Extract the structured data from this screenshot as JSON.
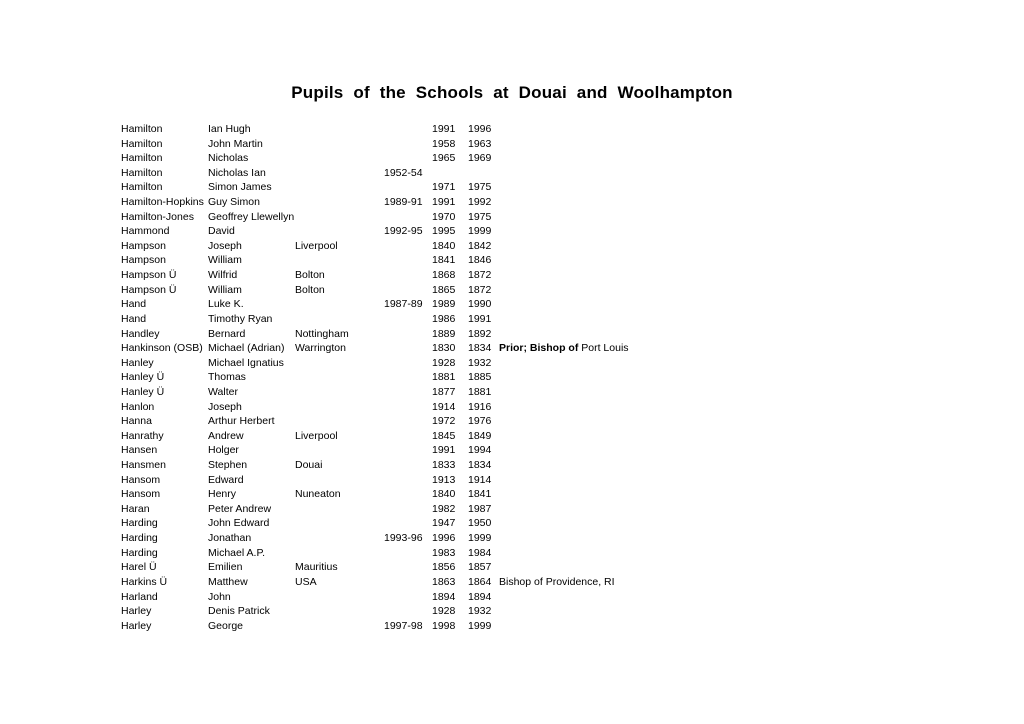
{
  "page": {
    "title": "Pupils of the Schools at Douai and Woolhampton",
    "background_color": "#ffffff",
    "text_color": "#000000"
  },
  "table": {
    "columns": [
      "surname",
      "forename",
      "place",
      "prep_years",
      "year_start",
      "year_end",
      "note"
    ],
    "rows": [
      {
        "surname": "Hamilton",
        "forename": "Ian Hugh",
        "place": "",
        "range": "",
        "y1": "1991",
        "y2": "1996",
        "note_bold": "",
        "note": ""
      },
      {
        "surname": "Hamilton",
        "forename": "John Martin",
        "place": "",
        "range": "",
        "y1": "1958",
        "y2": "1963",
        "note_bold": "",
        "note": ""
      },
      {
        "surname": "Hamilton",
        "forename": "Nicholas",
        "place": "",
        "range": "",
        "y1": "1965",
        "y2": "1969",
        "note_bold": "",
        "note": ""
      },
      {
        "surname": "Hamilton",
        "forename": "Nicholas Ian",
        "place": "",
        "range": "1952-54",
        "y1": "",
        "y2": "",
        "note_bold": "",
        "note": ""
      },
      {
        "surname": "Hamilton",
        "forename": "Simon James",
        "place": "",
        "range": "",
        "y1": "1971",
        "y2": "1975",
        "note_bold": "",
        "note": ""
      },
      {
        "surname": "Hamilton-Hopkins",
        "forename": "Guy Simon",
        "place": "",
        "range": "1989-91",
        "y1": "1991",
        "y2": "1992",
        "note_bold": "",
        "note": ""
      },
      {
        "surname": "Hamilton-Jones",
        "forename": "Geoffrey Llewellyn",
        "place": "",
        "range": "",
        "y1": "1970",
        "y2": "1975",
        "note_bold": "",
        "note": ""
      },
      {
        "surname": "Hammond",
        "forename": "David",
        "place": "",
        "range": "1992-95",
        "y1": "1995",
        "y2": "1999",
        "note_bold": "",
        "note": ""
      },
      {
        "surname": "Hampson",
        "forename": "Joseph",
        "place": "Liverpool",
        "range": "",
        "y1": "1840",
        "y2": "1842",
        "note_bold": "",
        "note": ""
      },
      {
        "surname": "Hampson",
        "forename": "William",
        "place": "",
        "range": "",
        "y1": "1841",
        "y2": "1846",
        "note_bold": "",
        "note": ""
      },
      {
        "surname": "Hampson Ü",
        "forename": "Wilfrid",
        "place": "Bolton",
        "range": "",
        "y1": "1868",
        "y2": "1872",
        "note_bold": "",
        "note": ""
      },
      {
        "surname": "Hampson Ü",
        "forename": "William",
        "place": "Bolton",
        "range": "",
        "y1": "1865",
        "y2": "1872",
        "note_bold": "",
        "note": ""
      },
      {
        "surname": "Hand",
        "forename": "Luke K.",
        "place": "",
        "range": "1987-89",
        "y1": "1989",
        "y2": "1990",
        "note_bold": "",
        "note": ""
      },
      {
        "surname": "Hand",
        "forename": "Timothy Ryan",
        "place": "",
        "range": "",
        "y1": "1986",
        "y2": "1991",
        "note_bold": "",
        "note": ""
      },
      {
        "surname": "Handley",
        "forename": "Bernard",
        "place": "Nottingham",
        "range": "",
        "y1": "1889",
        "y2": "1892",
        "note_bold": "",
        "note": ""
      },
      {
        "surname": "Hankinson (OSB)",
        "forename": "Michael (Adrian)",
        "place": "Warrington",
        "range": "",
        "y1": "1830",
        "y2": "1834",
        "note_bold": "Prior; Bishop of",
        "note": " Port Louis"
      },
      {
        "surname": "Hanley",
        "forename": "Michael Ignatius",
        "place": "",
        "range": "",
        "y1": "1928",
        "y2": "1932",
        "note_bold": "",
        "note": ""
      },
      {
        "surname": "Hanley Ü",
        "forename": "Thomas",
        "place": "",
        "range": "",
        "y1": "1881",
        "y2": "1885",
        "note_bold": "",
        "note": ""
      },
      {
        "surname": "Hanley Ü",
        "forename": "Walter",
        "place": "",
        "range": "",
        "y1": "1877",
        "y2": "1881",
        "note_bold": "",
        "note": ""
      },
      {
        "surname": "Hanlon",
        "forename": "Joseph",
        "place": "",
        "range": "",
        "y1": "1914",
        "y2": "1916",
        "note_bold": "",
        "note": ""
      },
      {
        "surname": "Hanna",
        "forename": "Arthur Herbert",
        "place": "",
        "range": "",
        "y1": "1972",
        "y2": "1976",
        "note_bold": "",
        "note": ""
      },
      {
        "surname": "Hanrathy",
        "forename": "Andrew",
        "place": "Liverpool",
        "range": "",
        "y1": "1845",
        "y2": "1849",
        "note_bold": "",
        "note": ""
      },
      {
        "surname": "Hansen",
        "forename": "Holger",
        "place": "",
        "range": "",
        "y1": "1991",
        "y2": "1994",
        "note_bold": "",
        "note": ""
      },
      {
        "surname": "Hansmen",
        "forename": "Stephen",
        "place": "Douai",
        "range": "",
        "y1": "1833",
        "y2": "1834",
        "note_bold": "",
        "note": ""
      },
      {
        "surname": "Hansom",
        "forename": "Edward",
        "place": "",
        "range": "",
        "y1": "1913",
        "y2": "1914",
        "note_bold": "",
        "note": ""
      },
      {
        "surname": "Hansom",
        "forename": "Henry",
        "place": "Nuneaton",
        "range": "",
        "y1": "1840",
        "y2": "1841",
        "note_bold": "",
        "note": ""
      },
      {
        "surname": "Haran",
        "forename": "Peter Andrew",
        "place": "",
        "range": "",
        "y1": "1982",
        "y2": "1987",
        "note_bold": "",
        "note": ""
      },
      {
        "surname": "Harding",
        "forename": "John Edward",
        "place": "",
        "range": "",
        "y1": "1947",
        "y2": "1950",
        "note_bold": "",
        "note": ""
      },
      {
        "surname": "Harding",
        "forename": "Jonathan",
        "place": "",
        "range": "1993-96",
        "y1": "1996",
        "y2": "1999",
        "note_bold": "",
        "note": ""
      },
      {
        "surname": "Harding",
        "forename": "Michael A.P.",
        "place": "",
        "range": "",
        "y1": "1983",
        "y2": "1984",
        "note_bold": "",
        "note": ""
      },
      {
        "surname": "Harel Ü",
        "forename": "Emilien",
        "place": "Mauritius",
        "range": "",
        "y1": "1856",
        "y2": "1857",
        "note_bold": "",
        "note": ""
      },
      {
        "surname": "Harkins Ü",
        "forename": "Matthew",
        "place": "USA",
        "range": "",
        "y1": "1863",
        "y2": "1864",
        "note_bold": "",
        "note": "Bishop of Providence, RI"
      },
      {
        "surname": "Harland",
        "forename": "John",
        "place": "",
        "range": "",
        "y1": "1894",
        "y2": "1894",
        "note_bold": "",
        "note": ""
      },
      {
        "surname": "Harley",
        "forename": "Denis Patrick",
        "place": "",
        "range": "",
        "y1": "1928",
        "y2": "1932",
        "note_bold": "",
        "note": ""
      },
      {
        "surname": "Harley",
        "forename": "George",
        "place": "",
        "range": "1997-98",
        "y1": "1998",
        "y2": "1999",
        "note_bold": "",
        "note": ""
      }
    ]
  }
}
